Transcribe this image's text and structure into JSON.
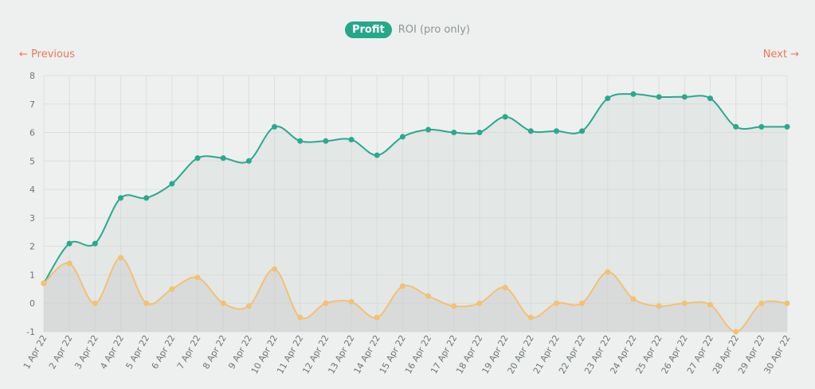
{
  "tabs": {
    "profit_label": "Profit",
    "roi_label": "ROI (pro only)"
  },
  "nav": {
    "previous_label": "← Previous",
    "next_label": "Next →"
  },
  "colors": {
    "series_a": "#2aa98f",
    "series_b": "#f3c173",
    "nav": "#e9785f",
    "tab_active": "#24a88a"
  },
  "chart_data": {
    "type": "line",
    "title": "",
    "xlabel": "",
    "ylabel": "",
    "ylim": [
      -1,
      8
    ],
    "yticks": [
      -1,
      0,
      1,
      2,
      3,
      4,
      5,
      6,
      7,
      8
    ],
    "grid": true,
    "categories": [
      "1 Apr 22",
      "2 Apr 22",
      "3 Apr 22",
      "4 Apr 22",
      "5 Apr 22",
      "6 Apr 22",
      "7 Apr 22",
      "8 Apr 22",
      "9 Apr 22",
      "10 Apr 22",
      "11 Apr 22",
      "12 Apr 22",
      "13 Apr 22",
      "14 Apr 22",
      "15 Apr 22",
      "16 Apr 22",
      "17 Apr 22",
      "18 Apr 22",
      "19 Apr 22",
      "20 Apr 22",
      "21 Apr 22",
      "22 Apr 22",
      "23 Apr 22",
      "24 Apr 22",
      "25 Apr 22",
      "26 Apr 22",
      "27 Apr 22",
      "28 Apr 22",
      "29 Apr 22",
      "30 Apr 22"
    ],
    "series": [
      {
        "values": [
          0.7,
          2.1,
          2.1,
          3.7,
          3.7,
          4.2,
          5.1,
          5.1,
          5.0,
          6.2,
          5.7,
          5.7,
          5.75,
          5.2,
          5.85,
          6.1,
          6.0,
          6.0,
          6.55,
          6.05,
          6.05,
          6.05,
          7.2,
          7.35,
          7.25,
          7.25,
          7.2,
          6.2,
          6.2,
          6.2
        ]
      },
      {
        "values": [
          0.7,
          1.4,
          0.0,
          1.6,
          0.0,
          0.5,
          0.9,
          0.0,
          -0.1,
          1.2,
          -0.5,
          0.0,
          0.05,
          -0.5,
          0.6,
          0.25,
          -0.1,
          0.0,
          0.55,
          -0.5,
          0.0,
          0.0,
          1.1,
          0.15,
          -0.1,
          0.0,
          -0.05,
          -1.0,
          0.0,
          0.0
        ]
      }
    ]
  }
}
